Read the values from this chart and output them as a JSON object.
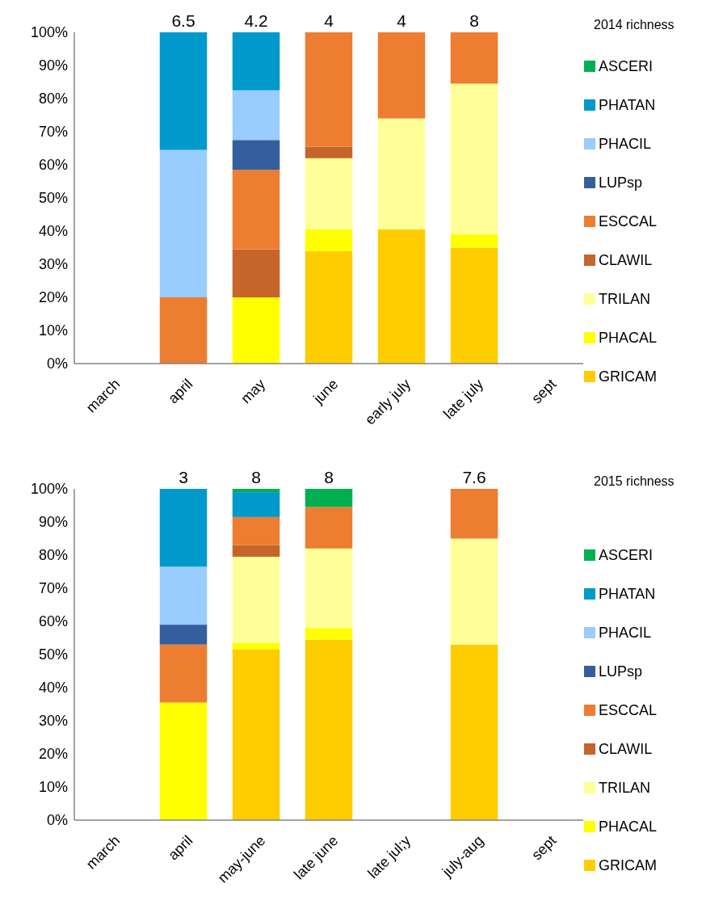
{
  "chart_data": [
    {
      "type": "bar",
      "stacked": true,
      "legend": "right",
      "legend_title": "2014 richness",
      "categories": [
        "march",
        "april",
        "may",
        "june",
        "early july",
        "late july",
        "sept"
      ],
      "ylim": [
        0,
        100
      ],
      "yticks": [
        {
          "value": 0,
          "label": "0%"
        },
        {
          "value": 10,
          "label": "10%"
        },
        {
          "value": 20,
          "label": "20%"
        },
        {
          "value": 30,
          "label": "30%"
        },
        {
          "value": 40,
          "label": "40%"
        },
        {
          "value": 50,
          "label": "50%"
        },
        {
          "value": 60,
          "label": "60%"
        },
        {
          "value": 70,
          "label": "70%"
        },
        {
          "value": 80,
          "label": "80%"
        },
        {
          "value": 90,
          "label": "90%"
        },
        {
          "value": 100,
          "label": "100%"
        }
      ],
      "annotations": [
        {
          "text": "6.5",
          "x": "april",
          "y": 100
        },
        {
          "text": "4.2",
          "x": "may",
          "y": 100
        },
        {
          "text": "4",
          "x": "june",
          "y": 100
        },
        {
          "text": "4",
          "x": "early july",
          "y": 100
        },
        {
          "text": "8",
          "x": "late july",
          "y": 100
        }
      ],
      "series": [
        {
          "name": "GRICAM",
          "color": "#ffcc00",
          "values": [
            null,
            null,
            null,
            34,
            40.5,
            35,
            null
          ]
        },
        {
          "name": "PHACAL",
          "color": "#ffff00",
          "values": [
            null,
            null,
            20,
            6.5,
            null,
            4,
            null
          ]
        },
        {
          "name": "TRILAN",
          "color": "#ffff99",
          "values": [
            null,
            null,
            null,
            21.5,
            33.5,
            45.5,
            null
          ]
        },
        {
          "name": "CLAWIL",
          "color": "#c5652a",
          "values": [
            null,
            null,
            14.5,
            3.5,
            null,
            null,
            null
          ]
        },
        {
          "name": "ESCCAL",
          "color": "#ed7d31",
          "values": [
            null,
            20,
            24,
            34.5,
            26,
            15.5,
            null
          ]
        },
        {
          "name": "LUPsp",
          "color": "#355e9f",
          "values": [
            null,
            null,
            9,
            null,
            null,
            null,
            null
          ]
        },
        {
          "name": "PHACIL",
          "color": "#99ccff",
          "values": [
            null,
            44.5,
            15,
            null,
            null,
            null,
            null
          ]
        },
        {
          "name": "PHATAN",
          "color": "#0099cc",
          "values": [
            null,
            35.5,
            17.5,
            null,
            null,
            null,
            null
          ]
        },
        {
          "name": "ASCERI",
          "color": "#00b050",
          "values": [
            null,
            null,
            null,
            null,
            null,
            null,
            null
          ]
        }
      ]
    },
    {
      "type": "bar",
      "stacked": true,
      "legend": "right",
      "legend_title": "2015 richness",
      "categories": [
        "march",
        "april",
        "may-june",
        "late june",
        "late jul;y",
        "july-aug",
        "sept"
      ],
      "ylim": [
        0,
        100
      ],
      "yticks": [
        {
          "value": 0,
          "label": "0%"
        },
        {
          "value": 10,
          "label": "10%"
        },
        {
          "value": 20,
          "label": "20%"
        },
        {
          "value": 30,
          "label": "30%"
        },
        {
          "value": 40,
          "label": "40%"
        },
        {
          "value": 50,
          "label": "50%"
        },
        {
          "value": 60,
          "label": "60%"
        },
        {
          "value": 70,
          "label": "70%"
        },
        {
          "value": 80,
          "label": "80%"
        },
        {
          "value": 90,
          "label": "90%"
        },
        {
          "value": 100,
          "label": "100%"
        }
      ],
      "annotations": [
        {
          "text": "3",
          "x": "april",
          "y": 100
        },
        {
          "text": "8",
          "x": "may-june",
          "y": 100
        },
        {
          "text": "8",
          "x": "late june",
          "y": 100
        },
        {
          "text": "7.6",
          "x": "july-aug",
          "y": 100
        }
      ],
      "series": [
        {
          "name": "GRICAM",
          "color": "#ffcc00",
          "values": [
            null,
            null,
            51.5,
            54.5,
            null,
            53,
            null
          ]
        },
        {
          "name": "PHACAL",
          "color": "#ffff00",
          "values": [
            null,
            35.5,
            2,
            3.5,
            null,
            null,
            null
          ]
        },
        {
          "name": "TRILAN",
          "color": "#ffff99",
          "values": [
            null,
            null,
            26,
            24,
            null,
            32,
            null
          ]
        },
        {
          "name": "CLAWIL",
          "color": "#c5652a",
          "values": [
            null,
            null,
            3.5,
            null,
            null,
            null,
            null
          ]
        },
        {
          "name": "ESCCAL",
          "color": "#ed7d31",
          "values": [
            null,
            17.5,
            8.5,
            12.5,
            null,
            15,
            null
          ]
        },
        {
          "name": "LUPsp",
          "color": "#355e9f",
          "values": [
            null,
            6,
            null,
            null,
            null,
            null,
            null
          ]
        },
        {
          "name": "PHACIL",
          "color": "#99ccff",
          "values": [
            null,
            17.5,
            null,
            null,
            null,
            null,
            null
          ]
        },
        {
          "name": "PHATAN",
          "color": "#0099cc",
          "values": [
            null,
            23.5,
            7.5,
            null,
            null,
            null,
            null
          ]
        },
        {
          "name": "ASCERI",
          "color": "#00b050",
          "values": [
            null,
            null,
            1,
            5.5,
            null,
            null,
            null
          ]
        }
      ]
    }
  ]
}
